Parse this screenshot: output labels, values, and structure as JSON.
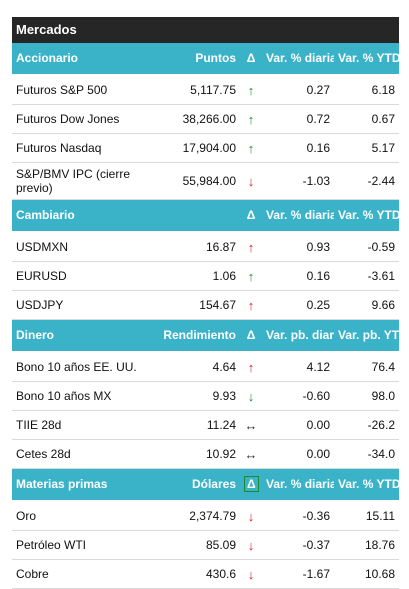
{
  "title": "Mercados",
  "delta_symbol": "Δ",
  "sections": [
    {
      "id": "accionario",
      "headers": [
        "Accionario",
        "Puntos",
        "Δ",
        "Var. % diaria",
        "Var. % YTD"
      ],
      "rows": [
        {
          "name": "Futuros S&P 500",
          "value": "5,117.75",
          "dir": "up",
          "daily": "0.27",
          "ytd": "6.18"
        },
        {
          "name": "Futuros Dow Jones",
          "value": "38,266.00",
          "dir": "up",
          "daily": "0.72",
          "ytd": "0.67"
        },
        {
          "name": "Futuros Nasdaq",
          "value": "17,904.00",
          "dir": "up",
          "daily": "0.16",
          "ytd": "5.17"
        },
        {
          "name": "S&P/BMV IPC (cierre previo)",
          "value": "55,984.00",
          "dir": "down",
          "daily": "-1.03",
          "ytd": "-2.44"
        }
      ]
    },
    {
      "id": "cambiario",
      "headers": [
        "Cambiario",
        "",
        "Δ",
        "Var. % diaria",
        "Var. % YTD"
      ],
      "rows": [
        {
          "name": "USDMXN",
          "value": "16.87",
          "dir": "up-red",
          "daily": "0.93",
          "ytd": "-0.59"
        },
        {
          "name": "EURUSD",
          "value": "1.06",
          "dir": "up",
          "daily": "0.16",
          "ytd": "-3.61"
        },
        {
          "name": "USDJPY",
          "value": "154.67",
          "dir": "up-red",
          "daily": "0.25",
          "ytd": "9.66"
        }
      ]
    },
    {
      "id": "dinero",
      "headers": [
        "Dinero",
        "Rendimiento",
        "Δ",
        "Var. pb. diaria",
        "Var. pb. YTD"
      ],
      "rows": [
        {
          "name": "Bono 10 años EE. UU.",
          "value": "4.64",
          "dir": "up-red",
          "daily": "4.12",
          "ytd": "76.4"
        },
        {
          "name": "Bono 10 años MX",
          "value": "9.93",
          "dir": "down-green",
          "daily": "-0.60",
          "ytd": "98.0"
        },
        {
          "name": "TIIE 28d",
          "value": "11.24",
          "dir": "flat",
          "daily": "0.00",
          "ytd": "-26.2"
        },
        {
          "name": "Cetes 28d",
          "value": "10.92",
          "dir": "flat",
          "daily": "0.00",
          "ytd": "-34.0"
        }
      ]
    },
    {
      "id": "materias-primas",
      "headers": [
        "Materias primas",
        "Dólares",
        "Δ",
        "Var. % diaria",
        "Var. % YTD"
      ],
      "rows": [
        {
          "name": "Oro",
          "value": "2,374.79",
          "dir": "down",
          "daily": "-0.36",
          "ytd": "15.11"
        },
        {
          "name": "Petróleo WTI",
          "value": "85.09",
          "dir": "down",
          "daily": "-0.37",
          "ytd": "18.76"
        },
        {
          "name": "Cobre",
          "value": "430.6",
          "dir": "down",
          "daily": "-1.67",
          "ytd": "10.68"
        }
      ]
    }
  ],
  "colors": {
    "header_bg": "#3ab3c9",
    "title_bg": "#262626",
    "up": "#1e8a2e",
    "down": "#d32020"
  }
}
